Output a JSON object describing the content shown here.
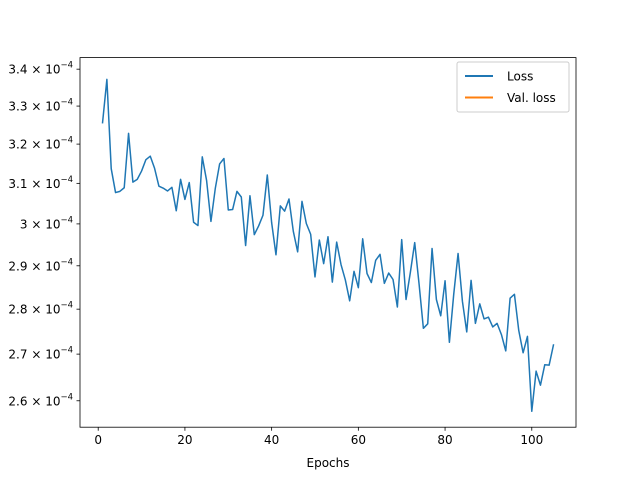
{
  "chart_data": {
    "type": "line",
    "title": "",
    "xlabel": "Epochs",
    "ylabel": "",
    "xlim": [
      -4.2,
      110.2
    ],
    "ylim": [
      0.0002545,
      0.0003432
    ],
    "yscale": "log",
    "grid": false,
    "legend_position": "top-right",
    "x_ticks": [
      {
        "value": 0,
        "label": "0"
      },
      {
        "value": 20,
        "label": "20"
      },
      {
        "value": 40,
        "label": "40"
      },
      {
        "value": 60,
        "label": "60"
      },
      {
        "value": 80,
        "label": "80"
      },
      {
        "value": 100,
        "label": "100"
      }
    ],
    "y_ticks": [
      {
        "value": 0.00026,
        "mantissa": "2.6",
        "exp": "−4"
      },
      {
        "value": 0.00027,
        "mantissa": "2.7",
        "exp": "−4"
      },
      {
        "value": 0.00028,
        "mantissa": "2.8",
        "exp": "−4"
      },
      {
        "value": 0.00029,
        "mantissa": "2.9",
        "exp": "−4"
      },
      {
        "value": 0.0003,
        "mantissa": "3",
        "exp": "−4"
      },
      {
        "value": 0.00031,
        "mantissa": "3.1",
        "exp": "−4"
      },
      {
        "value": 0.00032,
        "mantissa": "3.2",
        "exp": "−4"
      },
      {
        "value": 0.00033,
        "mantissa": "3.3",
        "exp": "−4"
      },
      {
        "value": 0.00034,
        "mantissa": "3.4",
        "exp": "−4"
      }
    ],
    "times_sign": "×",
    "base": "10",
    "series": [
      {
        "name": "Loss",
        "color": "#1f77b4",
        "x": [
          1,
          2,
          3,
          4,
          5,
          6,
          7,
          8,
          9,
          10,
          11,
          12,
          13,
          14,
          15,
          16,
          17,
          18,
          19,
          20,
          21,
          22,
          23,
          24,
          25,
          26,
          27,
          28,
          29,
          30,
          31,
          32,
          33,
          34,
          35,
          36,
          37,
          38,
          39,
          40,
          41,
          42,
          43,
          44,
          45,
          46,
          47,
          48,
          49,
          50,
          51,
          52,
          53,
          54,
          55,
          56,
          57,
          58,
          59,
          60,
          61,
          62,
          63,
          64,
          65,
          66,
          67,
          68,
          69,
          70,
          71,
          72,
          73,
          74,
          75,
          76,
          77,
          78,
          79,
          80,
          81,
          82,
          83,
          84,
          85,
          86,
          87,
          88,
          89,
          90,
          91,
          92,
          93,
          94,
          95,
          96,
          97,
          98,
          99,
          100,
          101,
          102,
          103,
          104,
          105
        ],
        "values": [
          0.0003256,
          0.0003372,
          0.0003137,
          0.0003077,
          0.000308,
          0.0003089,
          0.0003228,
          0.0003103,
          0.000311,
          0.0003131,
          0.000316,
          0.0003169,
          0.0003138,
          0.0003093,
          0.0003088,
          0.0003081,
          0.000309,
          0.0003032,
          0.000311,
          0.000306,
          0.0003102,
          0.0003004,
          0.0002996,
          0.0003167,
          0.0003107,
          0.0003006,
          0.0003087,
          0.0003149,
          0.0003163,
          0.0003034,
          0.0003035,
          0.000308,
          0.0003066,
          0.0002948,
          0.0003069,
          0.0002974,
          0.0002995,
          0.0003021,
          0.0003121,
          0.0003003,
          0.0002926,
          0.0003044,
          0.0003031,
          0.0003061,
          0.0002982,
          0.0002933,
          0.0003055,
          0.0003001,
          0.0002975,
          0.0002874,
          0.0002961,
          0.0002905,
          0.0002969,
          0.0002862,
          0.0002956,
          0.0002903,
          0.0002867,
          0.0002819,
          0.0002887,
          0.0002849,
          0.0002964,
          0.0002882,
          0.0002861,
          0.0002913,
          0.0002927,
          0.0002859,
          0.0002883,
          0.0002868,
          0.0002805,
          0.0002962,
          0.0002822,
          0.0002885,
          0.0002955,
          0.0002858,
          0.0002757,
          0.0002767,
          0.0002941,
          0.0002822,
          0.0002785,
          0.0002865,
          0.0002726,
          0.0002834,
          0.0002929,
          0.0002818,
          0.0002749,
          0.0002866,
          0.0002768,
          0.0002812,
          0.0002778,
          0.0002782,
          0.000276,
          0.0002768,
          0.0002743,
          0.0002707,
          0.0002825,
          0.0002834,
          0.0002752,
          0.0002703,
          0.0002739,
          0.0002578,
          0.0002663,
          0.0002633,
          0.0002677,
          0.0002676,
          0.000272
        ]
      },
      {
        "name": "Val. loss",
        "color": "#ff7f0e",
        "x": [],
        "values": []
      }
    ]
  }
}
